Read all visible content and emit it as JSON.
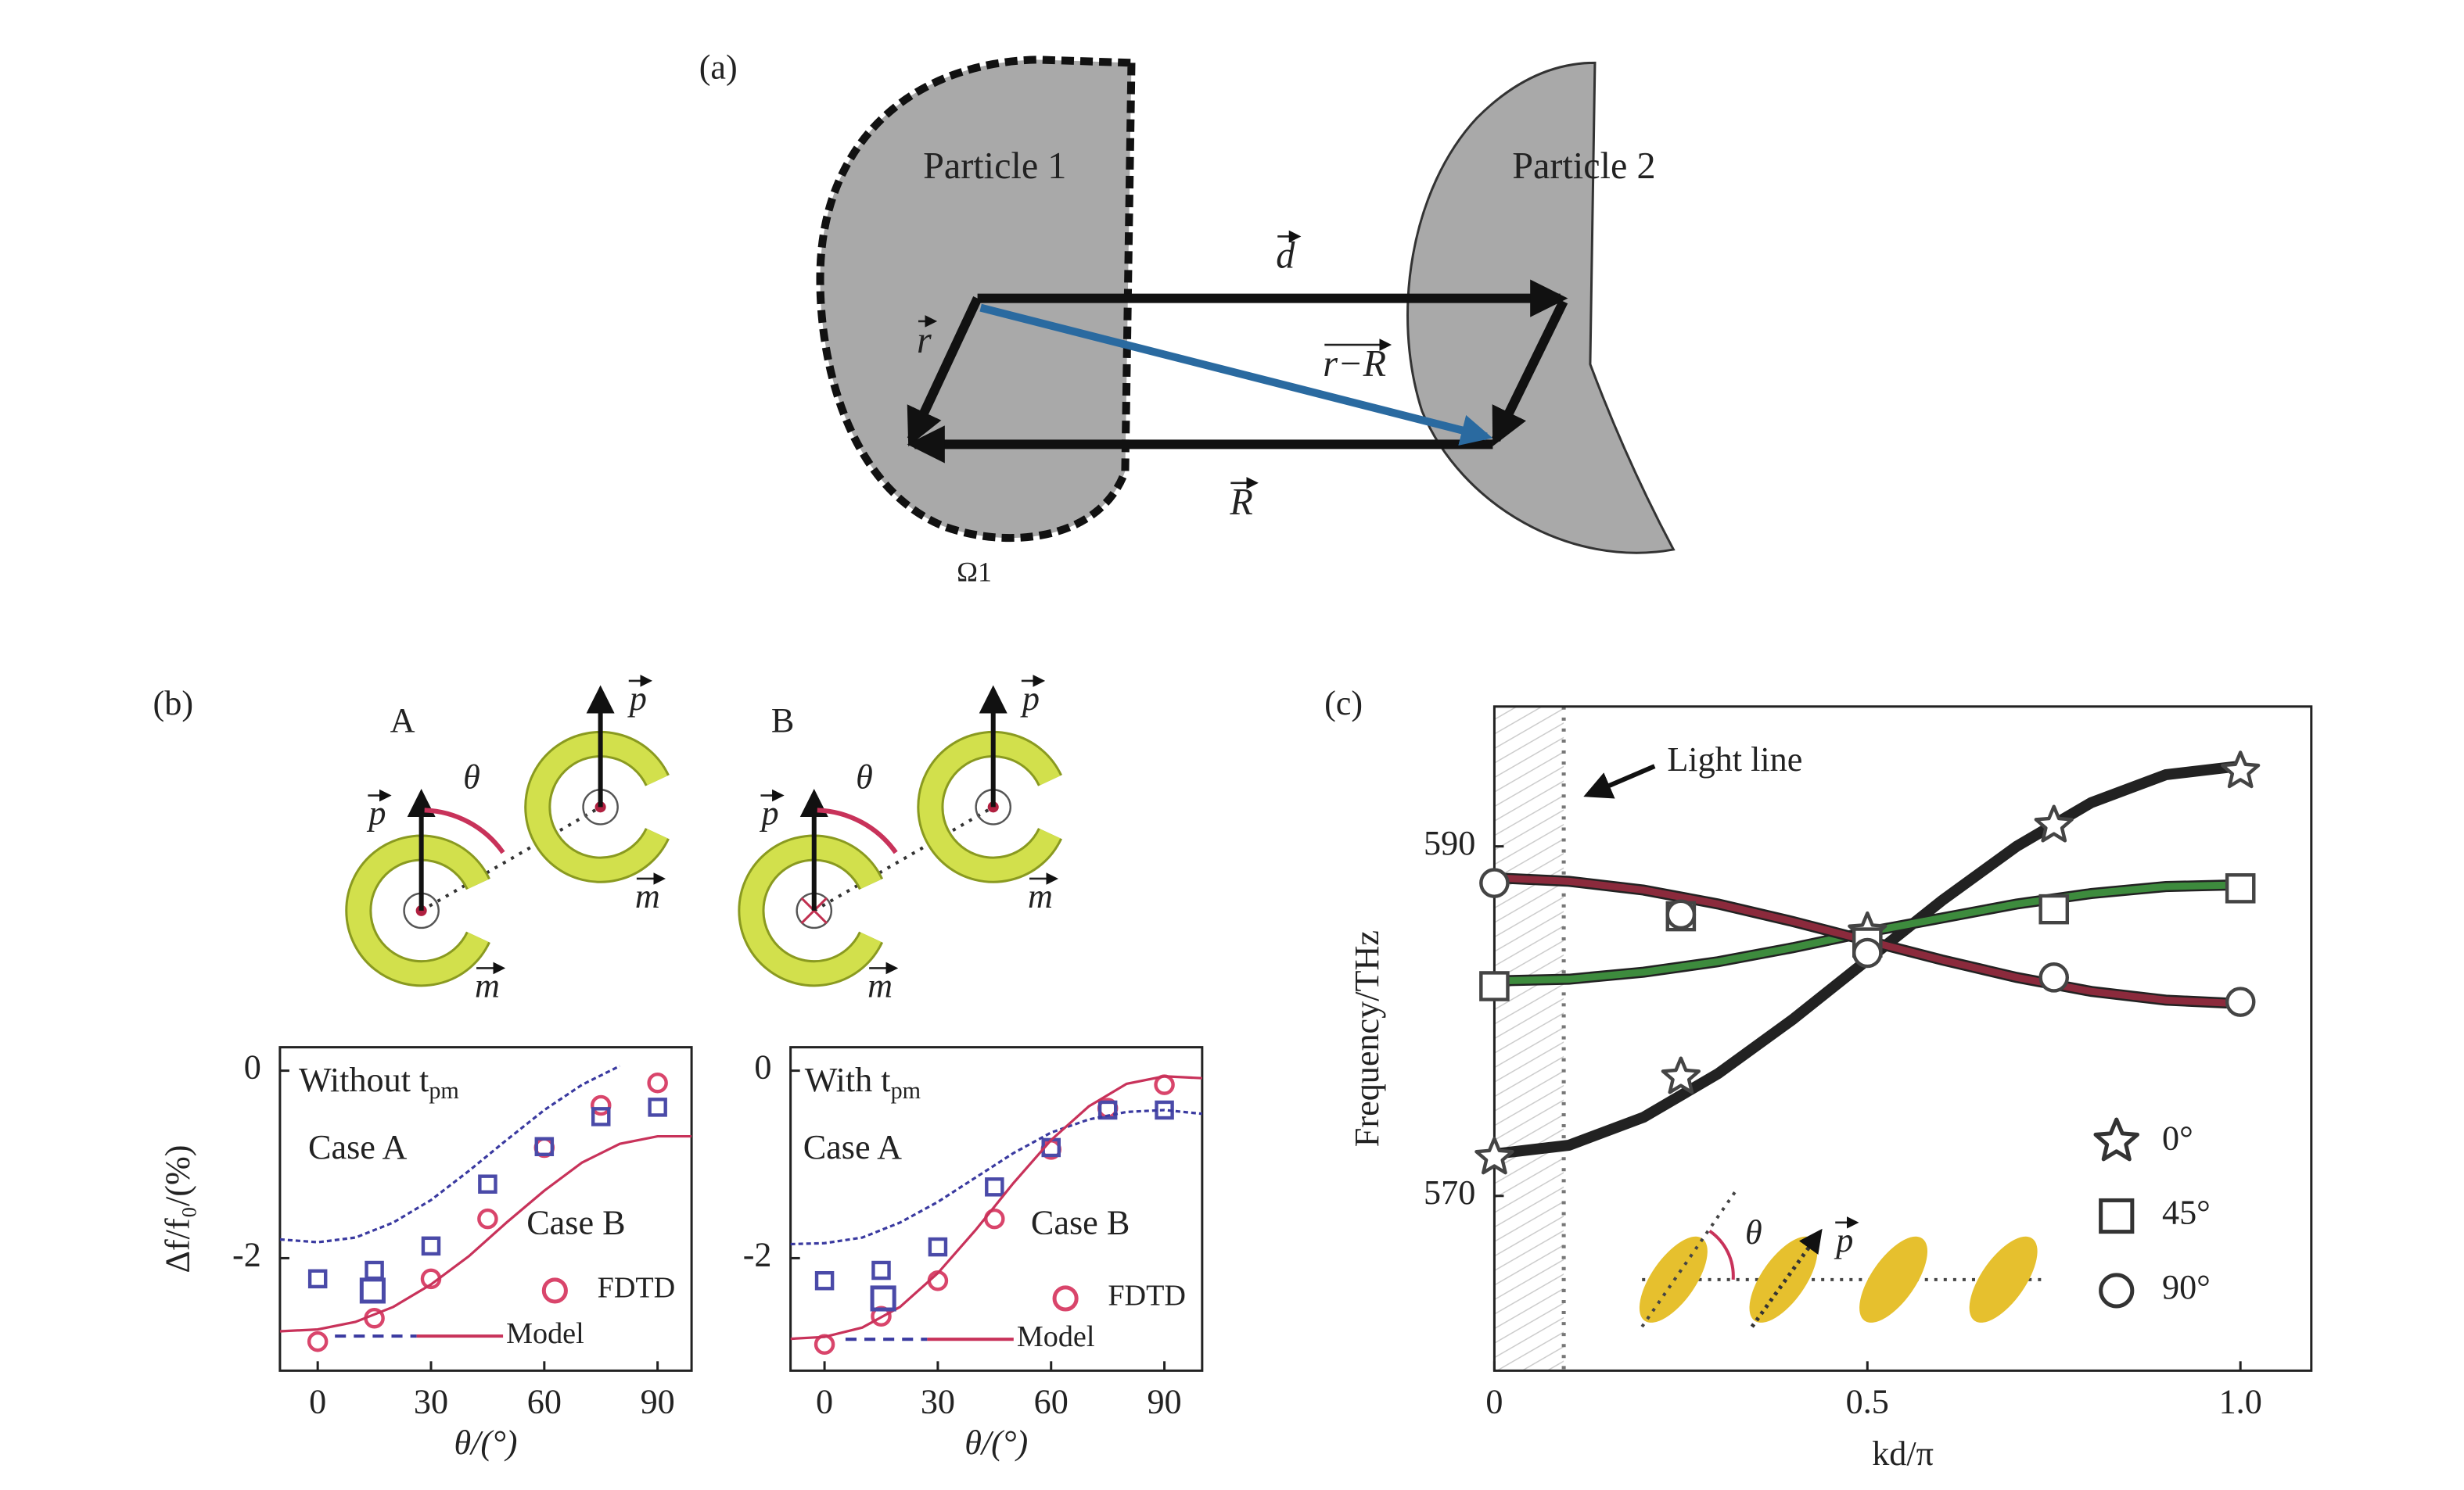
{
  "diagram_a": {
    "label": "(a)",
    "particle1": "Particle 1",
    "particle2": "Particle 2",
    "d": "d",
    "r": "r",
    "r_minus_R": "r−R",
    "R": "R",
    "omega": "Ω1"
  },
  "diagram_b": {
    "label": "(b)",
    "case_a": "A",
    "case_b": "B",
    "theta": "θ",
    "p": "p",
    "m": "m"
  },
  "chart_data": [
    {
      "type": "scatter",
      "xlabel": "θ/(°)",
      "ylabel": "Δf/f₀/(%)",
      "xlim": [
        -10,
        99
      ],
      "ylim": [
        -3.2,
        0.25
      ],
      "xticks": [
        0,
        30,
        60,
        90
      ],
      "yticks": [
        -2,
        0
      ],
      "annotations": [
        {
          "text": "Without t",
          "sub": "pm"
        },
        {
          "text": "Case A"
        },
        {
          "text": "Case B"
        }
      ],
      "series": [
        {
          "name": "FDTD",
          "style": "marker",
          "marker": "circle",
          "color": "#d9456b",
          "x": [
            0,
            15,
            30,
            45,
            60,
            75,
            90
          ],
          "values": [
            -2.89,
            -2.64,
            -2.22,
            -1.58,
            -0.82,
            -0.37,
            -0.13
          ]
        },
        {
          "style": "marker",
          "marker": "square",
          "color": "#4a4aa8",
          "x": [
            0,
            15,
            30,
            45,
            60,
            75,
            90
          ],
          "values": [
            -2.22,
            -2.13,
            -1.87,
            -1.21,
            -0.81,
            -0.49,
            -0.39
          ]
        },
        {
          "style": "dashed",
          "color": "#3a3aa0",
          "x": [
            -10,
            0,
            10,
            20,
            30,
            40,
            50,
            60,
            70,
            80
          ],
          "values": [
            -1.8,
            -1.83,
            -1.78,
            -1.62,
            -1.38,
            -1.07,
            -0.74,
            -0.42,
            -0.15,
            0.05
          ]
        },
        {
          "name": "Model",
          "style": "line",
          "color": "#c8325a",
          "x": [
            -10,
            0,
            10,
            20,
            30,
            40,
            50,
            60,
            70,
            80,
            90,
            99
          ],
          "values": [
            -2.78,
            -2.76,
            -2.68,
            -2.52,
            -2.28,
            -1.98,
            -1.62,
            -1.28,
            -0.98,
            -0.78,
            -0.7,
            -0.7
          ]
        }
      ]
    },
    {
      "type": "scatter",
      "xlabel": "θ/(°)",
      "xlim": [
        -9,
        100
      ],
      "ylim": [
        -3.2,
        0.25
      ],
      "xticks": [
        0,
        30,
        60,
        90
      ],
      "yticks": [
        -2,
        0
      ],
      "annotations": [
        {
          "text": "With t",
          "sub": "pm"
        },
        {
          "text": "Case A"
        },
        {
          "text": "Case B"
        }
      ],
      "series": [
        {
          "name": "FDTD",
          "style": "marker",
          "marker": "circle",
          "color": "#d9456b",
          "x": [
            0,
            15,
            30,
            45,
            60,
            75,
            90
          ],
          "values": [
            -2.92,
            -2.62,
            -2.24,
            -1.58,
            -0.84,
            -0.4,
            -0.15
          ]
        },
        {
          "style": "marker",
          "marker": "square",
          "color": "#4a4aa8",
          "x": [
            0,
            15,
            30,
            45,
            60,
            75,
            90
          ],
          "values": [
            -2.24,
            -2.13,
            -1.88,
            -1.24,
            -0.82,
            -0.42,
            -0.42
          ]
        },
        {
          "style": "dashed",
          "color": "#3a3aa0",
          "x": [
            -9,
            0,
            10,
            20,
            30,
            40,
            50,
            60,
            70,
            80,
            90,
            100
          ],
          "values": [
            -1.85,
            -1.84,
            -1.78,
            -1.62,
            -1.4,
            -1.14,
            -0.88,
            -0.66,
            -0.52,
            -0.44,
            -0.42,
            -0.46
          ]
        },
        {
          "name": "Model",
          "style": "line",
          "color": "#c8325a",
          "x": [
            -9,
            0,
            10,
            20,
            30,
            40,
            50,
            60,
            70,
            80,
            90,
            100
          ],
          "values": [
            -2.86,
            -2.84,
            -2.74,
            -2.52,
            -2.16,
            -1.7,
            -1.2,
            -0.74,
            -0.38,
            -0.14,
            -0.06,
            -0.08
          ]
        }
      ]
    },
    {
      "type": "scatter",
      "panel_label": "(c)",
      "xlabel": "kd/π",
      "ylabel": "Frequency/THz",
      "xlim": [
        0,
        1.095
      ],
      "ylim": [
        560,
        598
      ],
      "xticks": [
        0,
        0.5,
        {
          "value": 1,
          "label": "1.0"
        }
      ],
      "yticks": [
        570,
        590
      ],
      "annotations": [
        {
          "text": "Light line"
        }
      ],
      "light_line_x": 0.093,
      "inset": {
        "theta": "θ",
        "p": "p"
      },
      "series": [
        {
          "style": "line",
          "color": "#222222",
          "x": [
            0,
            0.1,
            0.2,
            0.3,
            0.4,
            0.5,
            0.6,
            0.7,
            0.8,
            0.9,
            1.0
          ],
          "values": [
            572.4,
            572.9,
            574.5,
            577.0,
            580.1,
            583.5,
            586.9,
            590.0,
            592.5,
            594.1,
            594.6
          ]
        },
        {
          "style": "line",
          "color": "#3d8b3d",
          "x": [
            0,
            0.1,
            0.2,
            0.3,
            0.4,
            0.5,
            0.6,
            0.7,
            0.8,
            0.9,
            1.0
          ],
          "values": [
            582.3,
            582.4,
            582.8,
            583.4,
            584.2,
            585.1,
            585.9,
            586.7,
            587.3,
            587.7,
            587.8
          ]
        },
        {
          "style": "line",
          "color": "#8b2a3c",
          "x": [
            0,
            0.1,
            0.2,
            0.3,
            0.4,
            0.5,
            0.6,
            0.7,
            0.8,
            0.9,
            1.0
          ],
          "values": [
            588.2,
            588.0,
            587.5,
            586.7,
            585.7,
            584.6,
            583.5,
            582.5,
            581.7,
            581.2,
            581.0
          ]
        },
        {
          "name": "0°",
          "style": "marker",
          "marker": "star",
          "color": "#444444",
          "x": [
            0,
            0.25,
            0.5,
            0.75,
            1.0
          ],
          "values": [
            572.2,
            576.8,
            585.1,
            591.2,
            594.3
          ]
        },
        {
          "name": "45°",
          "style": "marker",
          "marker": "square",
          "color": "#444444",
          "x": [
            0,
            0.25,
            0.5,
            0.75,
            1.0
          ],
          "values": [
            582.0,
            586.0,
            584.5,
            586.4,
            587.6
          ]
        },
        {
          "name": "90°",
          "style": "marker",
          "marker": "circle",
          "color": "#444444",
          "x": [
            0,
            0.25,
            0.5,
            0.75,
            1.0
          ],
          "values": [
            587.9,
            586.1,
            583.9,
            582.5,
            581.1
          ]
        }
      ]
    }
  ]
}
